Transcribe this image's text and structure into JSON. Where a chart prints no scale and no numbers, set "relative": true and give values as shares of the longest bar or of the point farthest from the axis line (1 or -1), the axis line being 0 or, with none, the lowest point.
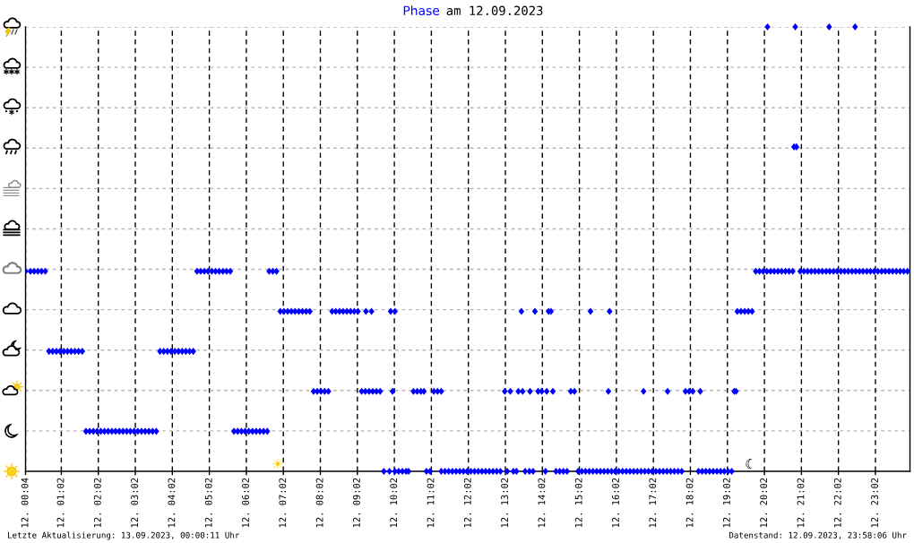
{
  "chart_data": {
    "type": "scatter",
    "title": "Phase am 12.09.2023",
    "relative": true,
    "marker": "diamond",
    "grid": true,
    "color": "#0000ff",
    "xlim": [
      "2023-09-12T00:04",
      "2023-09-12T23:58"
    ],
    "xticks": [
      {
        "value": "2023-09-12T00:04",
        "label": "12. 00:04"
      },
      {
        "value": "2023-09-12T01:02",
        "label": "12. 01:02"
      },
      {
        "value": "2023-09-12T02:02",
        "label": "12. 02:02"
      },
      {
        "value": "2023-09-12T03:02",
        "label": "12. 03:02"
      },
      {
        "value": "2023-09-12T04:02",
        "label": "12. 04:02"
      },
      {
        "value": "2023-09-12T05:02",
        "label": "12. 05:02"
      },
      {
        "value": "2023-09-12T06:02",
        "label": "12. 06:02"
      },
      {
        "value": "2023-09-12T07:02",
        "label": "12. 07:02"
      },
      {
        "value": "2023-09-12T08:02",
        "label": "12. 08:02"
      },
      {
        "value": "2023-09-12T09:02",
        "label": "12. 09:02"
      },
      {
        "value": "2023-09-12T10:02",
        "label": "12. 10:02"
      },
      {
        "value": "2023-09-12T11:02",
        "label": "12. 11:02"
      },
      {
        "value": "2023-09-12T12:02",
        "label": "12. 12:02"
      },
      {
        "value": "2023-09-12T13:02",
        "label": "12. 13:02"
      },
      {
        "value": "2023-09-12T14:02",
        "label": "12. 14:02"
      },
      {
        "value": "2023-09-12T15:02",
        "label": "12. 15:02"
      },
      {
        "value": "2023-09-12T16:02",
        "label": "12. 16:02"
      },
      {
        "value": "2023-09-12T17:02",
        "label": "12. 17:02"
      },
      {
        "value": "2023-09-12T18:02",
        "label": "12. 18:02"
      },
      {
        "value": "2023-09-12T19:02",
        "label": "12. 19:02"
      },
      {
        "value": "2023-09-12T20:02",
        "label": "12. 20:02"
      },
      {
        "value": "2023-09-12T21:02",
        "label": "12. 21:02"
      },
      {
        "value": "2023-09-12T22:02",
        "label": "12. 22:02"
      },
      {
        "value": "2023-09-12T23:02",
        "label": "12. 23:02"
      }
    ],
    "x": [
      "2023-09-12T00:04",
      "2023-09-12T00:12",
      "2023-09-12T00:18",
      "2023-09-12T00:24",
      "2023-09-12T00:30",
      "2023-09-12T00:36",
      "2023-09-12T04:42",
      "2023-09-12T04:48",
      "2023-09-12T04:54",
      "2023-09-12T05:00",
      "2023-09-12T05:06",
      "2023-09-12T05:12",
      "2023-09-12T05:18",
      "2023-09-12T05:24",
      "2023-09-12T05:30",
      "2023-09-12T05:36",
      "2023-09-12T06:39",
      "2023-09-12T06:45",
      "2023-09-12T06:51",
      "2023-09-12T19:48",
      "2023-09-12T19:54",
      "2023-09-12T20:00",
      "2023-09-12T20:06",
      "2023-09-12T20:12",
      "2023-09-12T20:18",
      "2023-09-12T20:24",
      "2023-09-12T20:30",
      "2023-09-12T20:36",
      "2023-09-12T20:42",
      "2023-09-12T20:48",
      "2023-09-12T21:00",
      "2023-09-12T21:06",
      "2023-09-12T21:12",
      "2023-09-12T21:18",
      "2023-09-12T21:24",
      "2023-09-12T21:30",
      "2023-09-12T21:36",
      "2023-09-12T21:42",
      "2023-09-12T21:48",
      "2023-09-12T21:54",
      "2023-09-12T22:00",
      "2023-09-12T22:06",
      "2023-09-12T22:12",
      "2023-09-12T22:18",
      "2023-09-12T22:24",
      "2023-09-12T22:30",
      "2023-09-12T22:36",
      "2023-09-12T22:42",
      "2023-09-12T22:48",
      "2023-09-12T22:54",
      "2023-09-12T23:00",
      "2023-09-12T23:06",
      "2023-09-12T23:12",
      "2023-09-12T23:18",
      "2023-09-12T23:24",
      "2023-09-12T23:30",
      "2023-09-12T23:36",
      "2023-09-12T23:42",
      "2023-09-12T23:48",
      "2023-09-12T23:54",
      "2023-09-12T00:42",
      "2023-09-12T00:48",
      "2023-09-12T00:54",
      "2023-09-12T01:00",
      "2023-09-12T01:06",
      "2023-09-12T01:12",
      "2023-09-12T01:18",
      "2023-09-12T01:24",
      "2023-09-12T01:30",
      "2023-09-12T01:36",
      "2023-09-12T03:42",
      "2023-09-12T03:48",
      "2023-09-12T03:54",
      "2023-09-12T04:00",
      "2023-09-12T04:06",
      "2023-09-12T04:12",
      "2023-09-12T04:18",
      "2023-09-12T04:24",
      "2023-09-12T04:30",
      "2023-09-12T04:36",
      "2023-09-12T01:42",
      "2023-09-12T01:48",
      "2023-09-12T01:54",
      "2023-09-12T02:00",
      "2023-09-12T02:06",
      "2023-09-12T02:12",
      "2023-09-12T02:18",
      "2023-09-12T02:24",
      "2023-09-12T02:30",
      "2023-09-12T02:36",
      "2023-09-12T02:42",
      "2023-09-12T02:48",
      "2023-09-12T02:54",
      "2023-09-12T03:00",
      "2023-09-12T03:06",
      "2023-09-12T03:12",
      "2023-09-12T03:18",
      "2023-09-12T03:24",
      "2023-09-12T03:30",
      "2023-09-12T03:36",
      "2023-09-12T05:42",
      "2023-09-12T05:48",
      "2023-09-12T05:54",
      "2023-09-12T06:00",
      "2023-09-12T06:06",
      "2023-09-12T06:12",
      "2023-09-12T06:18",
      "2023-09-12T06:24",
      "2023-09-12T06:30",
      "2023-09-12T06:36",
      "2023-09-12T06:57",
      "2023-09-12T07:03",
      "2023-09-12T07:09",
      "2023-09-12T07:15",
      "2023-09-12T07:21",
      "2023-09-12T07:27",
      "2023-09-12T07:33",
      "2023-09-12T07:39",
      "2023-09-12T07:45",
      "2023-09-12T08:21",
      "2023-09-12T08:27",
      "2023-09-12T08:33",
      "2023-09-12T08:39",
      "2023-09-12T08:45",
      "2023-09-12T08:51",
      "2023-09-12T08:57",
      "2023-09-12T09:03",
      "2023-09-12T09:16",
      "2023-09-12T09:25",
      "2023-09-12T09:56",
      "2023-09-12T10:03",
      "2023-09-12T13:28",
      "2023-09-12T13:50",
      "2023-09-12T14:12",
      "2023-09-12T14:16",
      "2023-09-12T15:20",
      "2023-09-12T15:51",
      "2023-09-12T19:18",
      "2023-09-12T19:24",
      "2023-09-12T19:30",
      "2023-09-12T19:36",
      "2023-09-12T19:42",
      "2023-09-12T07:51",
      "2023-09-12T07:57",
      "2023-09-12T08:03",
      "2023-09-12T08:09",
      "2023-09-12T08:15",
      "2023-09-12T09:09",
      "2023-09-12T09:15",
      "2023-09-12T09:21",
      "2023-09-12T09:27",
      "2023-09-12T09:33",
      "2023-09-12T09:39",
      "2023-09-12T09:59",
      "2023-09-12T10:33",
      "2023-09-12T10:39",
      "2023-09-12T10:45",
      "2023-09-12T10:50",
      "2023-09-12T11:06",
      "2023-09-12T11:12",
      "2023-09-12T11:18",
      "2023-09-12T13:01",
      "2023-09-12T13:10",
      "2023-09-12T13:23",
      "2023-09-12T13:30",
      "2023-09-12T13:42",
      "2023-09-12T13:55",
      "2023-09-12T14:01",
      "2023-09-12T14:09",
      "2023-09-12T14:19",
      "2023-09-12T14:48",
      "2023-09-12T14:54",
      "2023-09-12T15:49",
      "2023-09-12T16:46",
      "2023-09-12T17:25",
      "2023-09-12T17:54",
      "2023-09-12T18:00",
      "2023-09-12T18:06",
      "2023-09-12T18:18",
      "2023-09-12T19:13",
      "2023-09-12T19:16",
      "2023-09-12T09:45",
      "2023-09-12T09:54",
      "2023-09-12T10:03",
      "2023-09-12T10:09",
      "2023-09-12T10:15",
      "2023-09-12T10:21",
      "2023-09-12T10:25",
      "2023-09-12T10:54",
      "2023-09-12T11:00",
      "2023-09-12T11:18",
      "2023-09-12T11:24",
      "2023-09-12T11:30",
      "2023-09-12T11:36",
      "2023-09-12T11:42",
      "2023-09-12T11:48",
      "2023-09-12T11:54",
      "2023-09-12T12:00",
      "2023-09-12T12:06",
      "2023-09-12T12:12",
      "2023-09-12T12:18",
      "2023-09-12T12:24",
      "2023-09-12T12:30",
      "2023-09-12T12:36",
      "2023-09-12T12:42",
      "2023-09-12T12:48",
      "2023-09-12T12:54",
      "2023-09-12T13:05",
      "2023-09-12T13:15",
      "2023-09-12T13:20",
      "2023-09-12T13:34",
      "2023-09-12T13:41",
      "2023-09-12T13:47",
      "2023-09-12T14:07",
      "2023-09-12T14:24",
      "2023-09-12T14:30",
      "2023-09-12T14:36",
      "2023-09-12T14:42",
      "2023-09-12T15:00",
      "2023-09-12T15:06",
      "2023-09-12T15:12",
      "2023-09-12T15:18",
      "2023-09-12T15:24",
      "2023-09-12T15:30",
      "2023-09-12T15:36",
      "2023-09-12T15:42",
      "2023-09-12T15:48",
      "2023-09-12T15:54",
      "2023-09-12T16:00",
      "2023-09-12T16:06",
      "2023-09-12T16:12",
      "2023-09-12T16:18",
      "2023-09-12T16:24",
      "2023-09-12T16:30",
      "2023-09-12T16:36",
      "2023-09-12T16:42",
      "2023-09-12T16:48",
      "2023-09-12T16:54",
      "2023-09-12T17:00",
      "2023-09-12T17:06",
      "2023-09-12T17:12",
      "2023-09-12T17:18",
      "2023-09-12T17:24",
      "2023-09-12T17:30",
      "2023-09-12T17:36",
      "2023-09-12T17:42",
      "2023-09-12T17:48",
      "2023-09-12T18:15",
      "2023-09-12T18:21",
      "2023-09-12T18:27",
      "2023-09-12T18:33",
      "2023-09-12T18:39",
      "2023-09-12T18:45",
      "2023-09-12T18:51",
      "2023-09-12T18:57",
      "2023-09-12T19:03",
      "2023-09-12T19:09",
      "2023-09-12T20:50",
      "2023-09-12T20:54",
      "2023-09-12T20:07",
      "2023-09-12T20:52",
      "2023-09-12T21:47",
      "2023-09-12T22:29"
    ],
    "values": [
      0.45,
      0.45,
      0.45,
      0.45,
      0.45,
      0.45,
      0.45,
      0.45,
      0.45,
      0.45,
      0.45,
      0.45,
      0.45,
      0.45,
      0.45,
      0.45,
      0.45,
      0.45,
      0.45,
      0.45,
      0.45,
      0.45,
      0.45,
      0.45,
      0.45,
      0.45,
      0.45,
      0.45,
      0.45,
      0.45,
      0.45,
      0.45,
      0.45,
      0.45,
      0.45,
      0.45,
      0.45,
      0.45,
      0.45,
      0.45,
      0.45,
      0.45,
      0.45,
      0.45,
      0.45,
      0.45,
      0.45,
      0.45,
      0.45,
      0.45,
      0.45,
      0.45,
      0.45,
      0.45,
      0.45,
      0.45,
      0.45,
      0.45,
      0.45,
      0.45,
      0.27,
      0.27,
      0.27,
      0.27,
      0.27,
      0.27,
      0.27,
      0.27,
      0.27,
      0.27,
      0.27,
      0.27,
      0.27,
      0.27,
      0.27,
      0.27,
      0.27,
      0.27,
      0.27,
      0.27,
      0.09,
      0.09,
      0.09,
      0.09,
      0.09,
      0.09,
      0.09,
      0.09,
      0.09,
      0.09,
      0.09,
      0.09,
      0.09,
      0.09,
      0.09,
      0.09,
      0.09,
      0.09,
      0.09,
      0.09,
      0.09,
      0.09,
      0.09,
      0.09,
      0.09,
      0.09,
      0.09,
      0.09,
      0.09,
      0.09,
      0.36,
      0.36,
      0.36,
      0.36,
      0.36,
      0.36,
      0.36,
      0.36,
      0.36,
      0.36,
      0.36,
      0.36,
      0.36,
      0.36,
      0.36,
      0.36,
      0.36,
      0.36,
      0.36,
      0.36,
      0.36,
      0.36,
      0.36,
      0.36,
      0.36,
      0.36,
      0.36,
      0.36,
      0.36,
      0.36,
      0.36,
      0.36,
      0.18,
      0.18,
      0.18,
      0.18,
      0.18,
      0.18,
      0.18,
      0.18,
      0.18,
      0.18,
      0.18,
      0.18,
      0.18,
      0.18,
      0.18,
      0.18,
      0.18,
      0.18,
      0.18,
      0.18,
      0.18,
      0.18,
      0.18,
      0.18,
      0.18,
      0.18,
      0.18,
      0.18,
      0.18,
      0.18,
      0.18,
      0.18,
      0.18,
      0.18,
      0.18,
      0.18,
      0.18,
      0.18,
      0.18,
      0,
      0,
      0,
      0,
      0,
      0,
      0,
      0,
      0,
      0,
      0,
      0,
      0,
      0,
      0,
      0,
      0,
      0,
      0,
      0,
      0,
      0,
      0,
      0,
      0,
      0,
      0,
      0,
      0,
      0,
      0,
      0,
      0,
      0,
      0,
      0,
      0,
      0,
      0,
      0,
      0,
      0,
      0,
      0,
      0,
      0,
      0,
      0,
      0,
      0,
      0,
      0,
      0,
      0,
      0,
      0,
      0,
      0,
      0,
      0,
      0,
      0,
      0,
      0,
      0,
      0,
      0,
      0,
      0,
      0,
      0,
      0,
      0,
      0,
      0,
      0,
      0.73,
      0.73,
      1,
      1,
      1,
      1
    ],
    "annotations": [
      "Letzte Aktualisierung: 13.09.2023, 00:00:11 Uhr",
      "Datenstand: 12.09.2023, 23:58:06 Uhr",
      "☀",
      "☾"
    ]
  }
}
